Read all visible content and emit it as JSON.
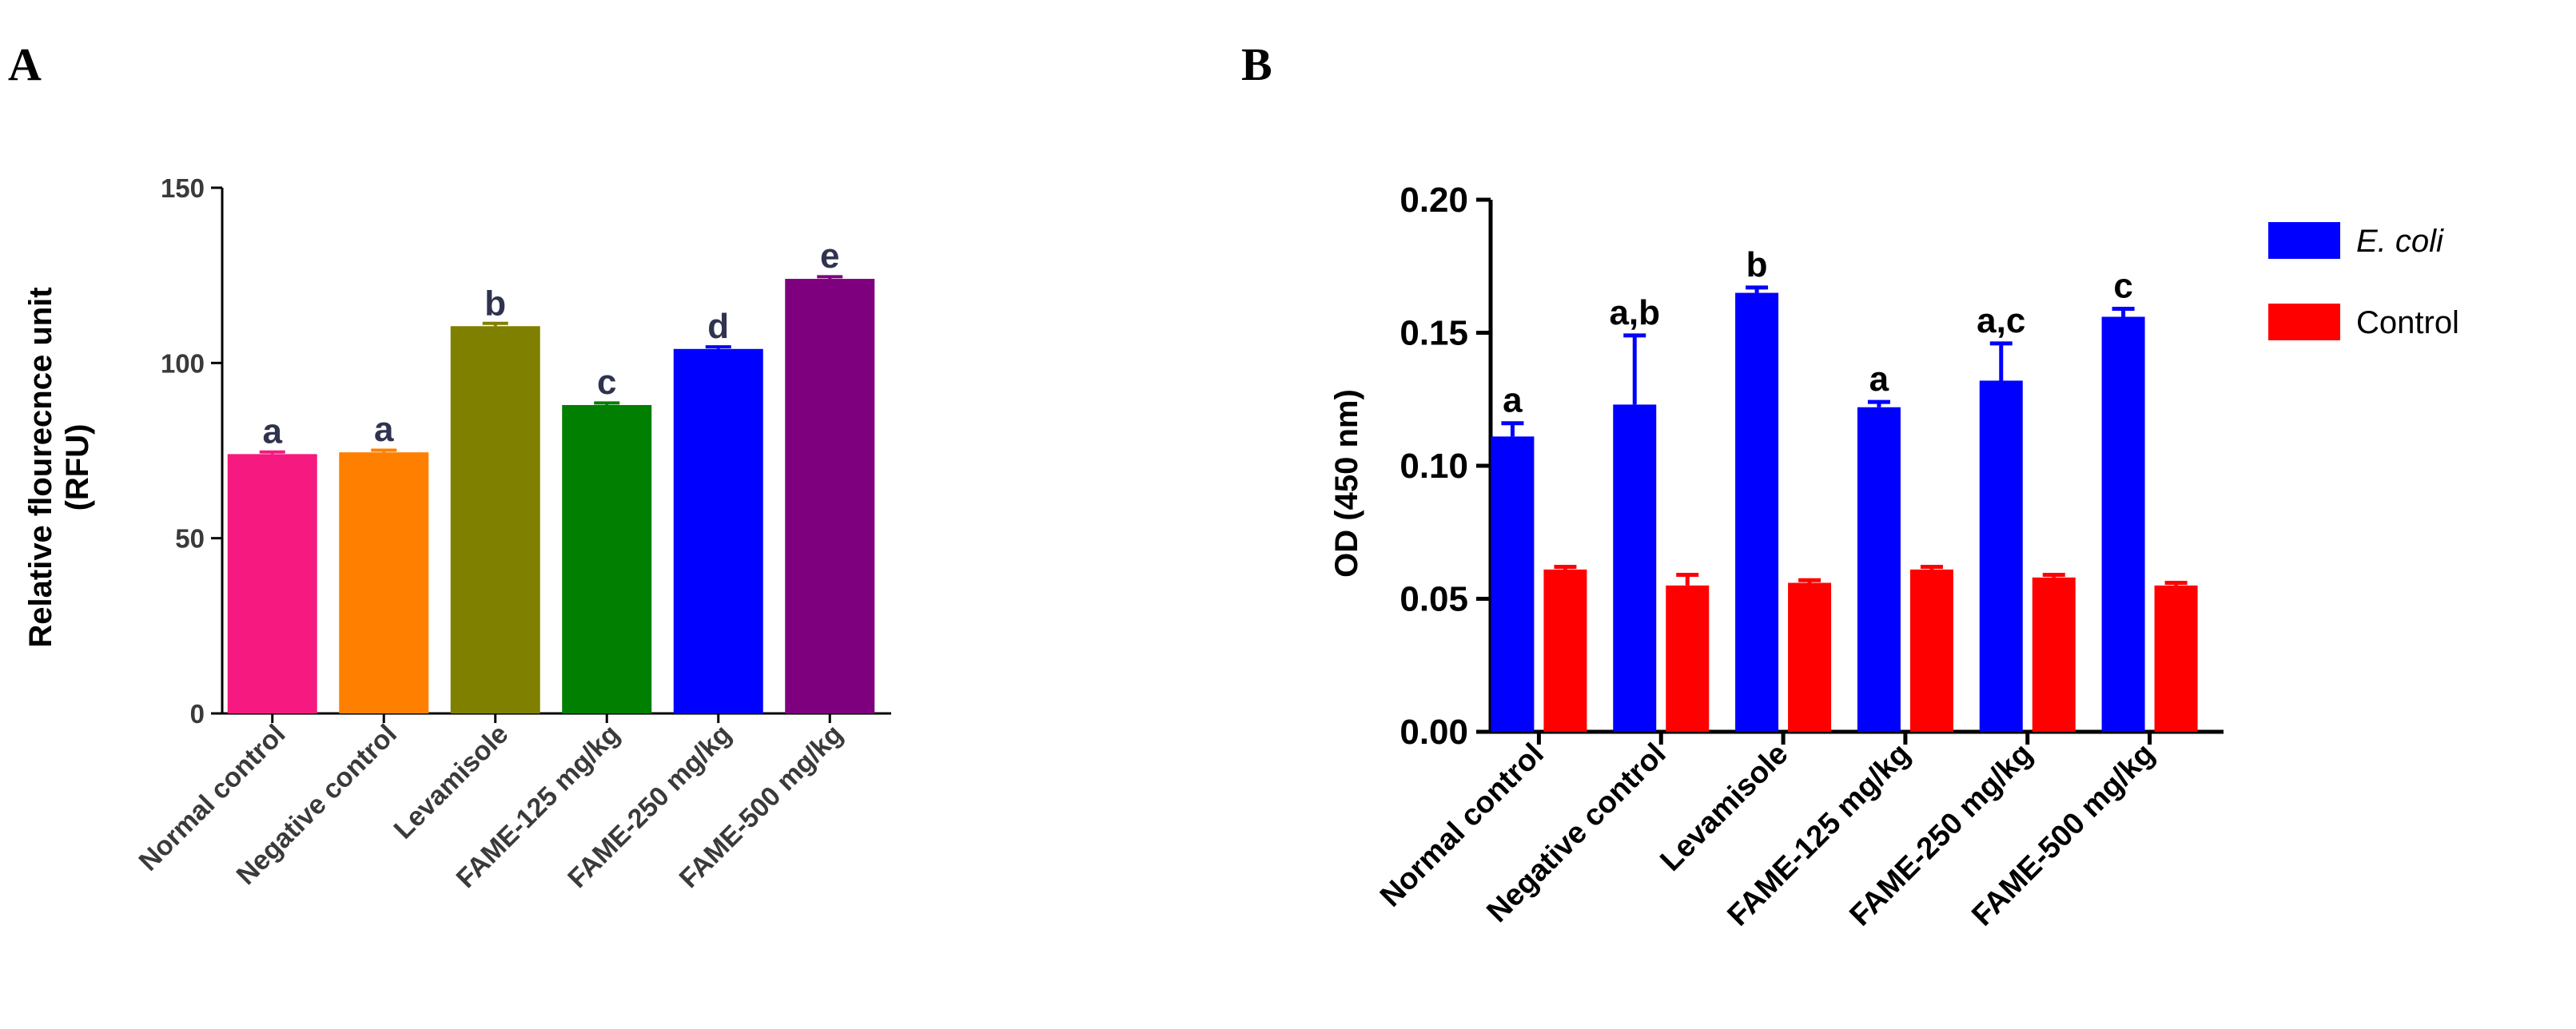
{
  "chart_data": [
    {
      "panel": "A",
      "type": "bar",
      "title": "",
      "ylabel_line1": "Relative flourecnce unit",
      "ylabel_line2": "(RFU)",
      "xlabel": "",
      "ylim": [
        0,
        150
      ],
      "yticks": [
        0,
        50,
        100,
        150
      ],
      "categories": [
        "Normal control",
        "Negative control",
        "Levamisole",
        "FAME-125 mg/kg",
        "FAME-250 mg/kg",
        "FAME-500 mg/kg"
      ],
      "values": [
        74,
        74.5,
        110.5,
        88,
        104,
        124
      ],
      "errors": [
        0.6,
        0.6,
        0.8,
        0.6,
        0.6,
        0.6
      ],
      "colors": [
        "#f6197f",
        "#ff8000",
        "#7f7f00",
        "#007f00",
        "#0000ff",
        "#7f007f"
      ],
      "annotations": [
        "a",
        "a",
        "b",
        "c",
        "d",
        "e"
      ]
    },
    {
      "panel": "B",
      "type": "bar",
      "title": "",
      "ylabel": "OD (450 nm)",
      "xlabel": "",
      "ylim": [
        0,
        0.2
      ],
      "yticks": [
        "0.00",
        "0.05",
        "0.10",
        "0.15",
        "0.20"
      ],
      "categories": [
        "Normal control",
        "Negative control",
        "Levamisole",
        "FAME-125 mg/kg",
        "FAME-250 mg/kg",
        "FAME-500 mg/kg"
      ],
      "series": [
        {
          "name": "E. coli",
          "color": "#0000ff",
          "values": [
            0.111,
            0.123,
            0.165,
            0.122,
            0.132,
            0.156
          ],
          "errors": [
            0.005,
            0.026,
            0.002,
            0.002,
            0.014,
            0.003
          ]
        },
        {
          "name": "Control",
          "color": "#ff0000",
          "values": [
            0.061,
            0.055,
            0.056,
            0.061,
            0.058,
            0.055
          ],
          "errors": [
            0.001,
            0.004,
            0.001,
            0.001,
            0.001,
            0.001
          ]
        }
      ],
      "annotations": [
        "a",
        "a,b",
        "b",
        "a",
        "a,c",
        "c"
      ],
      "legend_position": "top-right"
    }
  ]
}
